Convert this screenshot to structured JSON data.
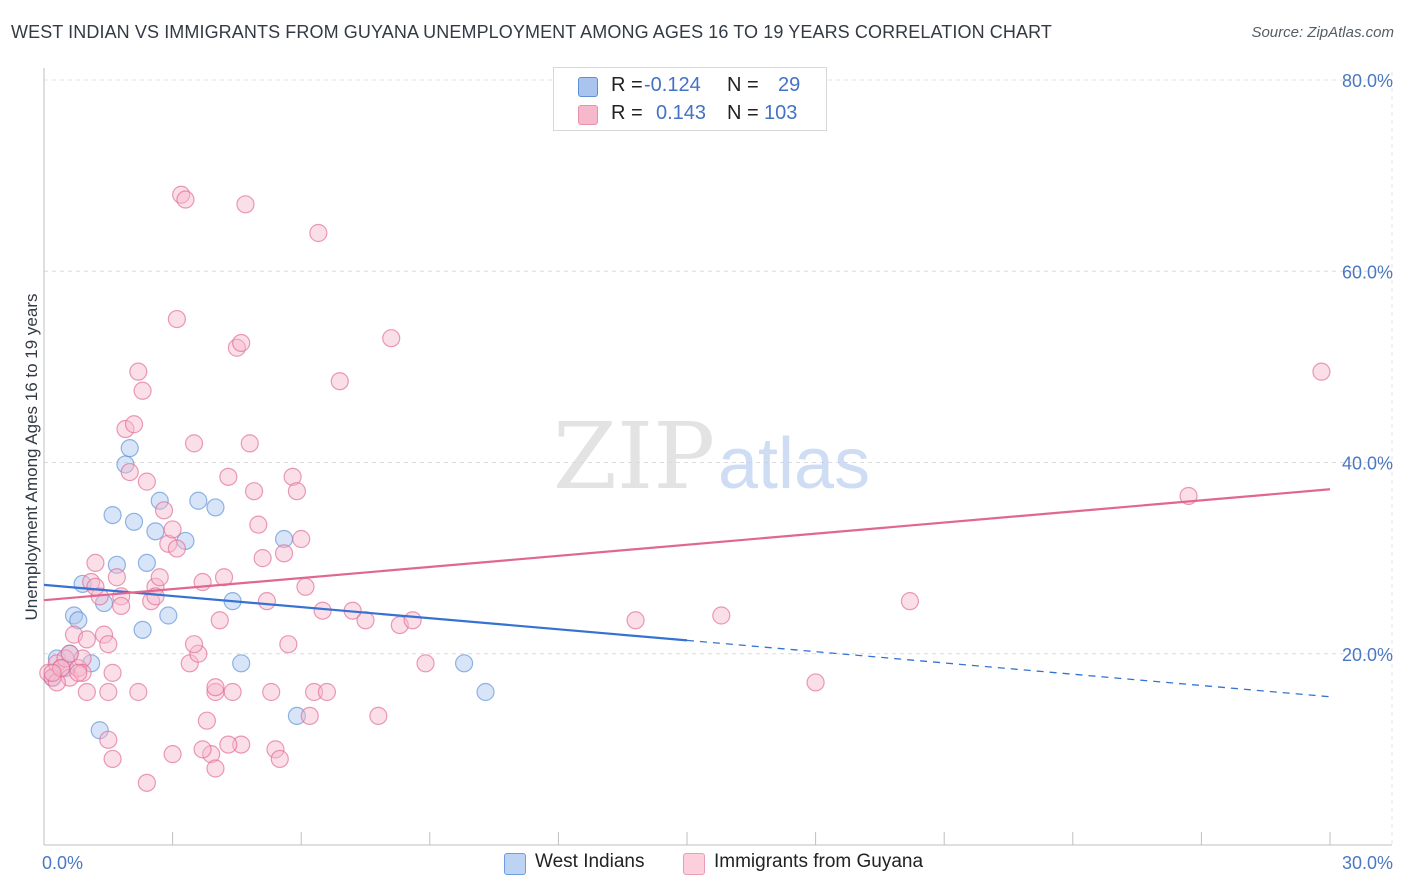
{
  "title": "WEST INDIAN VS IMMIGRANTS FROM GUYANA UNEMPLOYMENT AMONG AGES 16 TO 19 YEARS CORRELATION CHART",
  "source": "Source: ZipAtlas.com",
  "watermark": {
    "zip": "ZIP",
    "atlas": "atlas"
  },
  "legend": {
    "rows": [
      {
        "r_label": "R =",
        "r_value": "-0.124",
        "n_label": "N =",
        "n_value": "29",
        "color": "#a9c4ee",
        "border": "#5b8fd6"
      },
      {
        "r_label": "R =",
        "r_value": "0.143",
        "n_label": "N =",
        "n_value": "103",
        "color": "#f6b8cb",
        "border": "#e891ad"
      }
    ]
  },
  "bottom_legend": [
    {
      "label": "West Indians",
      "color": "#bcd3f3",
      "border": "#6d9ee0"
    },
    {
      "label": "Immigrants from Guyana",
      "color": "#fbd0dc",
      "border": "#ea9cb6"
    }
  ],
  "chart_data": {
    "type": "scatter",
    "title": "WEST INDIAN VS IMMIGRANTS FROM GUYANA UNEMPLOYMENT AMONG AGES 16 TO 19 YEARS CORRELATION CHART",
    "xlabel": "",
    "ylabel": "Unemployment Among Ages 16 to 19 years",
    "xlim": [
      0,
      30
    ],
    "ylim": [
      0,
      80
    ],
    "x_tick_labels": [
      "0.0%",
      "30.0%"
    ],
    "y_ticks": [
      20,
      40,
      60,
      80
    ],
    "y_tick_labels": [
      "20.0%",
      "40.0%",
      "60.0%",
      "80.0%"
    ],
    "grid": true,
    "series": [
      {
        "name": "West Indians",
        "color": "#5b8fd6",
        "fill": "#a9c4ee",
        "trend": {
          "x": [
            0,
            15
          ],
          "y": [
            27.2,
            21.4
          ],
          "dashed_to": [
            30,
            15.5
          ]
        },
        "points": [
          [
            0.2,
            17.5
          ],
          [
            0.3,
            19.5
          ],
          [
            0.5,
            18.5
          ],
          [
            0.6,
            20.0
          ],
          [
            0.7,
            24.0
          ],
          [
            0.8,
            23.5
          ],
          [
            0.9,
            27.3
          ],
          [
            1.1,
            19.0
          ],
          [
            1.4,
            25.3
          ],
          [
            1.6,
            34.5
          ],
          [
            1.7,
            29.3
          ],
          [
            1.9,
            39.8
          ],
          [
            2.0,
            41.5
          ],
          [
            2.1,
            33.8
          ],
          [
            2.3,
            22.5
          ],
          [
            2.4,
            29.5
          ],
          [
            2.6,
            32.8
          ],
          [
            2.7,
            36.0
          ],
          [
            2.9,
            24.0
          ],
          [
            3.3,
            31.8
          ],
          [
            3.6,
            36.0
          ],
          [
            4.0,
            35.3
          ],
          [
            4.4,
            25.5
          ],
          [
            4.6,
            19.0
          ],
          [
            5.6,
            32.0
          ],
          [
            5.9,
            13.5
          ],
          [
            1.3,
            12.0
          ],
          [
            9.8,
            19.0
          ],
          [
            10.3,
            16.0
          ]
        ]
      },
      {
        "name": "Immigrants from Guyana",
        "color": "#e0678f",
        "fill": "#f6b8cb",
        "trend": {
          "x": [
            0,
            30
          ],
          "y": [
            25.6,
            37.2
          ]
        },
        "points": [
          [
            0.1,
            18.0
          ],
          [
            0.2,
            17.5
          ],
          [
            0.3,
            19.0
          ],
          [
            0.4,
            18.5
          ],
          [
            0.5,
            19.5
          ],
          [
            0.6,
            17.5
          ],
          [
            0.7,
            22.0
          ],
          [
            0.8,
            18.5
          ],
          [
            0.9,
            19.5
          ],
          [
            1.0,
            21.5
          ],
          [
            1.1,
            27.5
          ],
          [
            1.2,
            29.5
          ],
          [
            1.3,
            26.0
          ],
          [
            1.4,
            22.0
          ],
          [
            1.5,
            21.0
          ],
          [
            1.6,
            18.0
          ],
          [
            1.7,
            28.0
          ],
          [
            1.8,
            26.0
          ],
          [
            1.9,
            43.5
          ],
          [
            2.0,
            39.0
          ],
          [
            2.1,
            44.0
          ],
          [
            2.2,
            49.5
          ],
          [
            2.3,
            47.5
          ],
          [
            2.4,
            38.0
          ],
          [
            2.5,
            25.5
          ],
          [
            2.6,
            27.0
          ],
          [
            2.7,
            28.0
          ],
          [
            2.8,
            35.0
          ],
          [
            2.9,
            31.5
          ],
          [
            3.0,
            33.0
          ],
          [
            3.1,
            55.0
          ],
          [
            3.2,
            68.0
          ],
          [
            3.3,
            67.5
          ],
          [
            3.4,
            19.0
          ],
          [
            3.5,
            42.0
          ],
          [
            3.6,
            20.0
          ],
          [
            3.7,
            27.5
          ],
          [
            3.8,
            13.0
          ],
          [
            3.9,
            9.5
          ],
          [
            4.0,
            16.0
          ],
          [
            4.1,
            23.5
          ],
          [
            4.2,
            28.0
          ],
          [
            4.3,
            38.5
          ],
          [
            4.4,
            16.0
          ],
          [
            4.5,
            52.0
          ],
          [
            4.6,
            52.5
          ],
          [
            4.7,
            67.0
          ],
          [
            4.8,
            42.0
          ],
          [
            4.9,
            37.0
          ],
          [
            5.0,
            33.5
          ],
          [
            5.1,
            30.0
          ],
          [
            5.2,
            25.5
          ],
          [
            5.3,
            16.0
          ],
          [
            5.4,
            10.0
          ],
          [
            5.5,
            9.0
          ],
          [
            5.6,
            30.5
          ],
          [
            5.7,
            21.0
          ],
          [
            5.8,
            38.5
          ],
          [
            5.9,
            37.0
          ],
          [
            6.0,
            32.0
          ],
          [
            6.1,
            27.0
          ],
          [
            6.2,
            13.5
          ],
          [
            6.3,
            16.0
          ],
          [
            6.4,
            64.0
          ],
          [
            6.5,
            24.5
          ],
          [
            6.6,
            16.0
          ],
          [
            6.9,
            48.5
          ],
          [
            7.2,
            24.5
          ],
          [
            7.5,
            23.5
          ],
          [
            7.8,
            13.5
          ],
          [
            8.1,
            53.0
          ],
          [
            8.3,
            23.0
          ],
          [
            8.6,
            23.5
          ],
          [
            8.9,
            19.0
          ],
          [
            13.8,
            23.5
          ],
          [
            15.8,
            24.0
          ],
          [
            18.0,
            17.0
          ],
          [
            20.2,
            25.5
          ],
          [
            26.7,
            36.5
          ],
          [
            29.8,
            49.5
          ],
          [
            1.5,
            11.0
          ],
          [
            1.6,
            9.0
          ],
          [
            2.4,
            6.5
          ],
          [
            3.0,
            9.5
          ],
          [
            3.7,
            10.0
          ],
          [
            4.0,
            8.0
          ],
          [
            4.6,
            10.5
          ],
          [
            0.3,
            17.0
          ],
          [
            0.6,
            20.0
          ],
          [
            0.9,
            18.0
          ],
          [
            1.2,
            27.0
          ],
          [
            1.5,
            16.0
          ],
          [
            1.8,
            25.0
          ],
          [
            2.2,
            16.0
          ],
          [
            2.6,
            26.0
          ],
          [
            3.1,
            31.0
          ],
          [
            3.5,
            21.0
          ],
          [
            4.0,
            16.5
          ],
          [
            4.3,
            10.5
          ],
          [
            0.4,
            18.5
          ],
          [
            0.8,
            18.0
          ],
          [
            1.0,
            16.0
          ],
          [
            0.2,
            18.0
          ]
        ]
      }
    ]
  }
}
